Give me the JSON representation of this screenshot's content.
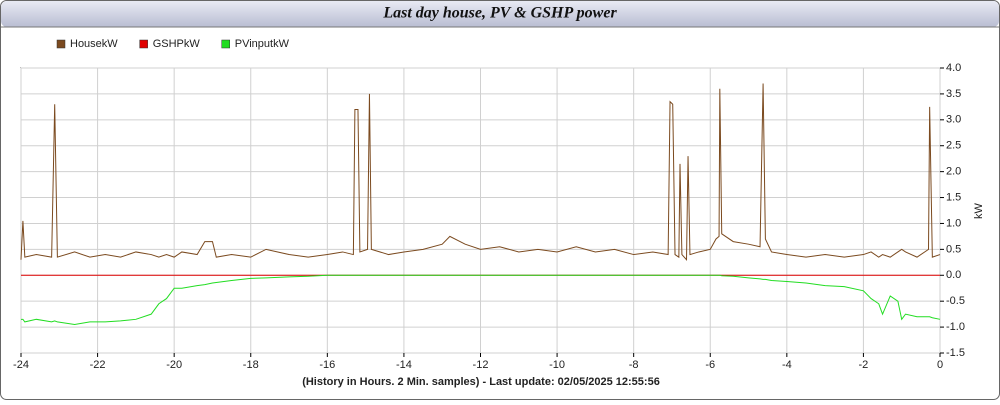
{
  "chart_data": {
    "type": "line",
    "title": "Last day house, PV & GSHP power",
    "xlabel": "(History in Hours. 2 Min. samples) - Last update: 02/05/2025 12:55:56",
    "ylabel": "kW",
    "legend": "top-left",
    "grid": true,
    "xlim": [
      -24,
      0
    ],
    "xticks": [
      -24,
      -22,
      -20,
      -18,
      -16,
      -14,
      -12,
      -10,
      -8,
      -6,
      -4,
      -2,
      0
    ],
    "ylim": [
      -1.5,
      4
    ],
    "yticks": [
      {
        "value": 4,
        "label": "4.0"
      },
      3.5,
      {
        "value": 3,
        "label": "3.0"
      },
      2.5,
      {
        "value": 2,
        "label": "2.0"
      },
      1.5,
      {
        "value": 1,
        "label": "1.0"
      },
      0.5,
      {
        "value": 0,
        "label": "0.0"
      },
      -0.5,
      {
        "value": -1,
        "label": "-1.0"
      },
      -1.5
    ],
    "x": [
      -24,
      -23.95,
      -23.9,
      -23.6,
      -23.2,
      -23.12,
      -23.05,
      -22.6,
      -22.2,
      -21.8,
      -21.4,
      -21.0,
      -20.6,
      -20.4,
      -20.2,
      -20.0,
      -19.8,
      -19.4,
      -19.2,
      -19.0,
      -18.9,
      -18.5,
      -18.0,
      -17.6,
      -17.0,
      -16.5,
      -16.0,
      -15.6,
      -15.32,
      -15.28,
      -15.2,
      -15.15,
      -14.95,
      -14.9,
      -14.85,
      -14.4,
      -14.0,
      -13.5,
      -13.0,
      -12.8,
      -12.4,
      -12.0,
      -11.5,
      -11.0,
      -10.5,
      -10.0,
      -9.5,
      -9.0,
      -8.5,
      -8.0,
      -7.5,
      -7.1,
      -7.05,
      -6.98,
      -6.92,
      -6.82,
      -6.79,
      -6.74,
      -6.62,
      -6.58,
      -6.53,
      -6.3,
      -6.0,
      -5.85,
      -5.77,
      -5.75,
      -5.7,
      -5.4,
      -5.0,
      -4.7,
      -4.62,
      -4.56,
      -4.4,
      -4.0,
      -3.5,
      -3.0,
      -2.5,
      -2.0,
      -1.8,
      -1.6,
      -1.5,
      -1.3,
      -1.1,
      -1.0,
      -0.9,
      -0.6,
      -0.3,
      -0.27,
      -0.2,
      0
    ],
    "series": [
      {
        "name": "HousekW",
        "color": "#7b4a1f",
        "values": [
          0.3,
          1.05,
          0.35,
          0.4,
          0.35,
          3.3,
          0.35,
          0.45,
          0.35,
          0.4,
          0.35,
          0.45,
          0.4,
          0.35,
          0.4,
          0.35,
          0.45,
          0.4,
          0.65,
          0.65,
          0.35,
          0.4,
          0.35,
          0.5,
          0.4,
          0.35,
          0.4,
          0.45,
          0.4,
          3.2,
          3.2,
          0.45,
          0.5,
          3.5,
          0.5,
          0.4,
          0.45,
          0.5,
          0.6,
          0.75,
          0.6,
          0.5,
          0.55,
          0.45,
          0.5,
          0.45,
          0.55,
          0.45,
          0.5,
          0.4,
          0.45,
          0.4,
          3.35,
          3.3,
          0.4,
          0.35,
          2.15,
          0.4,
          0.3,
          2.3,
          0.4,
          0.45,
          0.5,
          0.7,
          0.75,
          3.6,
          0.8,
          0.65,
          0.6,
          0.55,
          3.7,
          0.7,
          0.45,
          0.4,
          0.35,
          0.4,
          0.35,
          0.4,
          0.45,
          0.35,
          0.4,
          0.35,
          0.45,
          0.5,
          0.45,
          0.35,
          0.5,
          3.25,
          0.35,
          0.4
        ]
      },
      {
        "name": "GSHPkW",
        "color": "#e00000",
        "values": [
          0,
          0,
          0,
          0,
          0,
          0,
          0,
          0,
          0,
          0,
          0,
          0,
          0,
          0,
          0,
          0,
          0,
          0,
          0,
          0,
          0,
          0,
          0,
          0,
          0,
          0,
          0,
          0,
          0,
          0,
          0,
          0,
          0,
          0,
          0,
          0,
          0,
          0,
          0,
          0,
          0,
          0,
          0,
          0,
          0,
          0,
          0,
          0,
          0,
          0,
          0,
          0,
          0,
          0,
          0,
          0,
          0,
          0,
          0,
          0,
          0,
          0,
          0,
          0,
          0,
          0,
          0,
          0,
          0,
          0,
          0,
          0,
          0,
          0,
          0,
          0,
          0,
          0,
          0,
          0,
          0,
          0,
          0,
          0,
          0,
          0,
          0,
          0,
          0,
          0
        ]
      },
      {
        "name": "PVinputkW",
        "color": "#22dd22",
        "values": [
          -0.85,
          -0.85,
          -0.9,
          -0.85,
          -0.9,
          -0.88,
          -0.9,
          -0.95,
          -0.9,
          -0.9,
          -0.88,
          -0.85,
          -0.75,
          -0.55,
          -0.45,
          -0.25,
          -0.25,
          -0.2,
          -0.18,
          -0.15,
          -0.14,
          -0.1,
          -0.06,
          -0.05,
          -0.03,
          -0.02,
          0,
          0,
          0,
          0,
          0,
          0,
          0,
          0,
          0,
          0,
          0,
          0,
          0,
          0,
          0,
          0,
          0,
          0,
          0,
          0,
          0,
          0,
          0,
          0,
          0,
          0,
          0,
          0,
          0,
          0,
          0,
          0,
          0,
          0,
          0,
          0,
          0,
          0,
          0,
          0,
          -0.01,
          -0.02,
          -0.05,
          -0.07,
          -0.08,
          -0.08,
          -0.1,
          -0.12,
          -0.15,
          -0.2,
          -0.22,
          -0.3,
          -0.45,
          -0.55,
          -0.75,
          -0.4,
          -0.5,
          -0.85,
          -0.75,
          -0.8,
          -0.8,
          -0.8,
          -0.82,
          -0.85
        ]
      }
    ]
  }
}
